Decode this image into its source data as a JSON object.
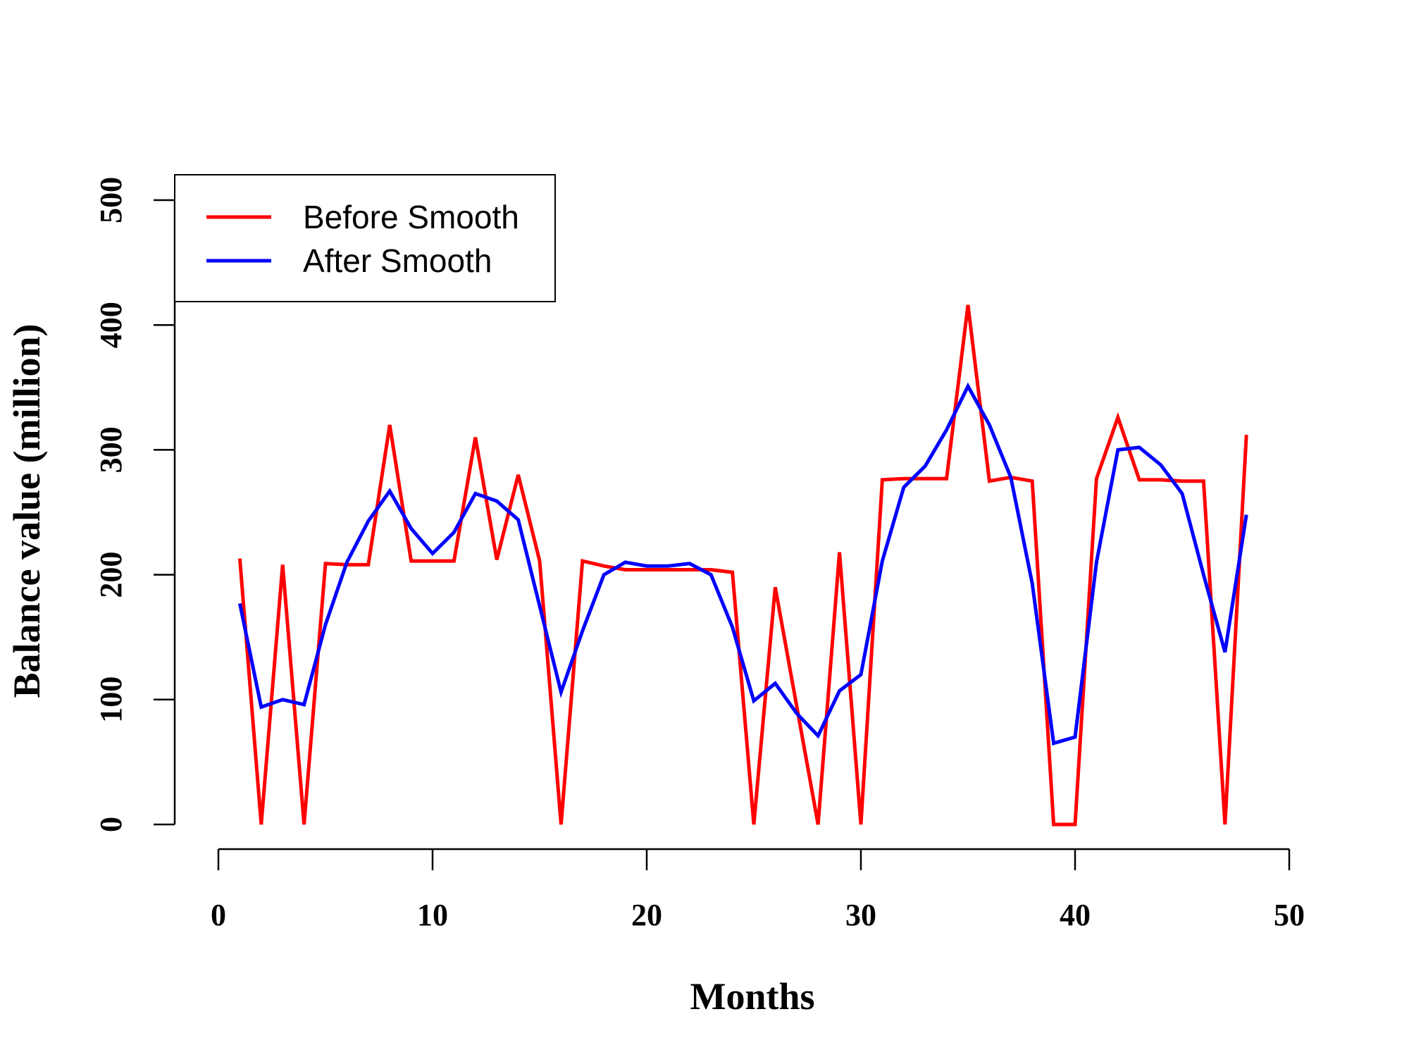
{
  "chart_data": {
    "type": "line",
    "title": "",
    "xlabel": "Months",
    "ylabel": "Balance value (million)",
    "xlim": [
      0,
      50
    ],
    "ylim": [
      0,
      500
    ],
    "x_ticks": [
      "0",
      "10",
      "20",
      "30",
      "40",
      "50"
    ],
    "y_ticks": [
      "0",
      "100",
      "200",
      "300",
      "400",
      "500"
    ],
    "grid": false,
    "legend_position": "top-left",
    "x": [
      1,
      2,
      3,
      4,
      5,
      6,
      7,
      8,
      9,
      10,
      11,
      12,
      13,
      14,
      15,
      16,
      17,
      18,
      19,
      20,
      21,
      22,
      23,
      24,
      25,
      26,
      27,
      28,
      29,
      30,
      31,
      32,
      33,
      34,
      35,
      36,
      37,
      38,
      39,
      40,
      41,
      42,
      43,
      44,
      45,
      46,
      47,
      48
    ],
    "series": [
      {
        "name": "Before Smooth",
        "color": "#ff0000",
        "values": [
          213,
          0,
          208,
          0,
          209,
          208,
          208,
          320,
          211,
          211,
          211,
          310,
          212,
          280,
          211,
          0,
          211,
          207,
          204,
          204,
          204,
          204,
          204,
          202,
          0,
          190,
          95,
          0,
          218,
          0,
          276,
          277,
          277,
          277,
          416,
          275,
          278,
          275,
          0,
          0,
          277,
          326,
          276,
          276,
          275,
          275,
          0,
          312
        ]
      },
      {
        "name": "After Smooth",
        "color": "#0000ff",
        "values": [
          177,
          94,
          100,
          96,
          160,
          210,
          243,
          267,
          237,
          217,
          234,
          265,
          259,
          244,
          175,
          106,
          155,
          200,
          210,
          207,
          207,
          209,
          200,
          158,
          99,
          113,
          89,
          71,
          107,
          120,
          211,
          270,
          287,
          316,
          351,
          320,
          278,
          193,
          65,
          70,
          210,
          300,
          302,
          288,
          265,
          200,
          138,
          248
        ]
      }
    ]
  }
}
